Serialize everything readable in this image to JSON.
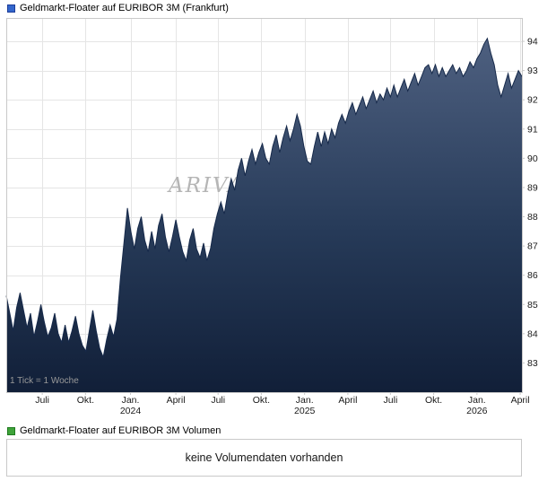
{
  "price_section": {
    "title": "Geldmarkt-Floater auf EURIBOR 3M (Frankfurt)",
    "tick_note": "1 Tick = 1 Woche",
    "watermark": "ARIVA.DE",
    "legend_color": "#3366cc"
  },
  "volume_section": {
    "title": "Geldmarkt-Floater auf EURIBOR 3M Volumen",
    "message": "keine Volumendaten vorhanden",
    "legend_color": "#3fa33a"
  },
  "chart_data": {
    "type": "area",
    "title": "Geldmarkt-Floater auf EURIBOR 3M (Frankfurt)",
    "x_unit": "1 Tick = 1 Woche",
    "grid": true,
    "legend_position": "top-left-header",
    "ylim": [
      82.0,
      94.8
    ],
    "y_ticks": [
      83,
      84,
      85,
      86,
      87,
      88,
      89,
      90,
      91,
      92,
      93,
      94
    ],
    "x_ticks": [
      {
        "label": "Juli",
        "pos": 10.4
      },
      {
        "label": "Okt.",
        "pos": 22.9
      },
      {
        "label": "Jan.",
        "year": "2024",
        "pos": 35.9
      },
      {
        "label": "April",
        "pos": 49.0
      },
      {
        "label": "Juli",
        "pos": 61.2
      },
      {
        "label": "Okt.",
        "pos": 73.7
      },
      {
        "label": "Jan.",
        "year": "2025",
        "pos": 86.2
      },
      {
        "label": "April",
        "pos": 98.7
      },
      {
        "label": "Juli",
        "pos": 111.0
      },
      {
        "label": "Okt.",
        "pos": 123.5
      },
      {
        "label": "Jan.",
        "year": "2026",
        "pos": 136.0
      },
      {
        "label": "April",
        "pos": 148.5
      }
    ],
    "series": [
      {
        "name": "Geldmarkt-Floater auf EURIBOR 3M (Frankfurt)",
        "values": [
          85.3,
          84.7,
          84.1,
          84.9,
          85.4,
          84.8,
          84.2,
          84.7,
          83.9,
          84.4,
          85.0,
          84.4,
          83.9,
          84.2,
          84.7,
          84.0,
          83.7,
          84.3,
          83.7,
          84.1,
          84.6,
          84.0,
          83.6,
          83.4,
          84.1,
          84.8,
          84.1,
          83.5,
          83.2,
          83.8,
          84.3,
          83.9,
          84.5,
          85.9,
          87.1,
          88.3,
          87.5,
          86.9,
          87.6,
          88.0,
          87.2,
          86.8,
          87.5,
          86.9,
          87.7,
          88.1,
          87.3,
          86.8,
          87.3,
          87.9,
          87.3,
          86.8,
          86.5,
          87.2,
          87.6,
          86.9,
          86.6,
          87.1,
          86.5,
          86.9,
          87.6,
          88.1,
          88.5,
          88.1,
          88.8,
          89.3,
          88.9,
          89.6,
          90.0,
          89.4,
          89.9,
          90.3,
          89.8,
          90.2,
          90.5,
          90.0,
          89.8,
          90.4,
          90.8,
          90.2,
          90.7,
          91.1,
          90.6,
          91.0,
          91.5,
          91.1,
          90.4,
          89.9,
          89.8,
          90.4,
          90.9,
          90.4,
          90.9,
          90.5,
          91.0,
          90.7,
          91.2,
          91.5,
          91.2,
          91.6,
          91.9,
          91.5,
          91.8,
          92.1,
          91.7,
          92.0,
          92.3,
          91.9,
          92.2,
          92.0,
          92.4,
          92.1,
          92.5,
          92.1,
          92.4,
          92.7,
          92.3,
          92.6,
          92.9,
          92.5,
          92.8,
          93.1,
          93.2,
          92.9,
          93.2,
          92.8,
          93.1,
          92.8,
          93.0,
          93.2,
          92.9,
          93.1,
          92.8,
          93.0,
          93.3,
          93.1,
          93.4,
          93.6,
          93.9,
          94.1,
          93.6,
          93.2,
          92.5,
          92.1,
          92.5,
          92.9,
          92.4,
          92.7,
          93.0,
          92.8
        ]
      }
    ],
    "colors": {
      "line": "#16294a",
      "fill_top": "#4e6080",
      "fill_mid": "#263a58",
      "fill_bottom": "#111f38",
      "grid": "#e5e5e5",
      "border": "#c9c9c9",
      "axis_text": "#1a1a1a",
      "watermark": "#b5b5b5"
    }
  }
}
